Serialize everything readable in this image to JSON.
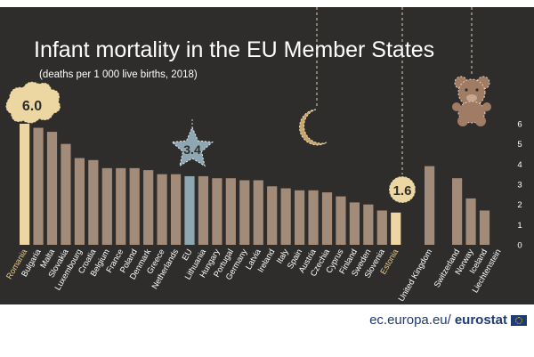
{
  "header": {
    "title": "Infant mortality in the EU Member States",
    "subtitle": "(deaths per 1 000 live births, 2018)"
  },
  "callouts": {
    "romania_value": "6.0",
    "eu_value": "3.4",
    "estonia_value": "1.6"
  },
  "footer": {
    "domain": "ec.europa.eu/",
    "brand": "eurostat"
  },
  "colors": {
    "background": "#2e2d2b",
    "bar_default": "#a38b79",
    "bar_romania": "#ecd7a3",
    "bar_estonia": "#ecd7a3",
    "bar_eu": "#8fa7b3",
    "label_default": "#ffffff",
    "label_highlight": "#e7c88a"
  },
  "chart_data": {
    "type": "bar",
    "title": "Infant mortality in the EU Member States",
    "subtitle": "(deaths per 1 000 live births, 2018)",
    "ylim": [
      0,
      6
    ],
    "yticks": [
      0,
      1,
      2,
      3,
      4,
      5,
      6
    ],
    "groups": [
      {
        "group": "eu",
        "categories": [
          "Romania",
          "Bulgaria",
          "Malta",
          "Slovakia",
          "Luxembourg",
          "Croatia",
          "Belgium",
          "France",
          "Poland",
          "Denmark",
          "Greece",
          "Netherlands",
          "EU",
          "Lithuania",
          "Hungary",
          "Portugal",
          "Germany",
          "Latvia",
          "Ireland",
          "Italy",
          "Spain",
          "Austria",
          "Czechia",
          "Cyprus",
          "Finland",
          "Sweden",
          "Slovenia",
          "Estonia"
        ],
        "values": [
          6.0,
          5.8,
          5.6,
          5.0,
          4.3,
          4.2,
          3.8,
          3.8,
          3.8,
          3.7,
          3.5,
          3.5,
          3.4,
          3.4,
          3.3,
          3.3,
          3.2,
          3.2,
          2.9,
          2.8,
          2.7,
          2.7,
          2.6,
          2.4,
          2.1,
          2.0,
          1.7,
          1.6
        ]
      },
      {
        "group": "efta",
        "categories": [
          "United Kingdom"
        ],
        "values": [
          3.9
        ]
      },
      {
        "group": "efta2",
        "categories": [
          "Switzerland",
          "Norway",
          "Iceland",
          "Liechtenstein"
        ],
        "values": [
          3.3,
          2.3,
          1.7,
          null
        ]
      }
    ],
    "highlight": {
      "Romania": "min-max",
      "Estonia": "min-max",
      "EU": "average"
    }
  }
}
